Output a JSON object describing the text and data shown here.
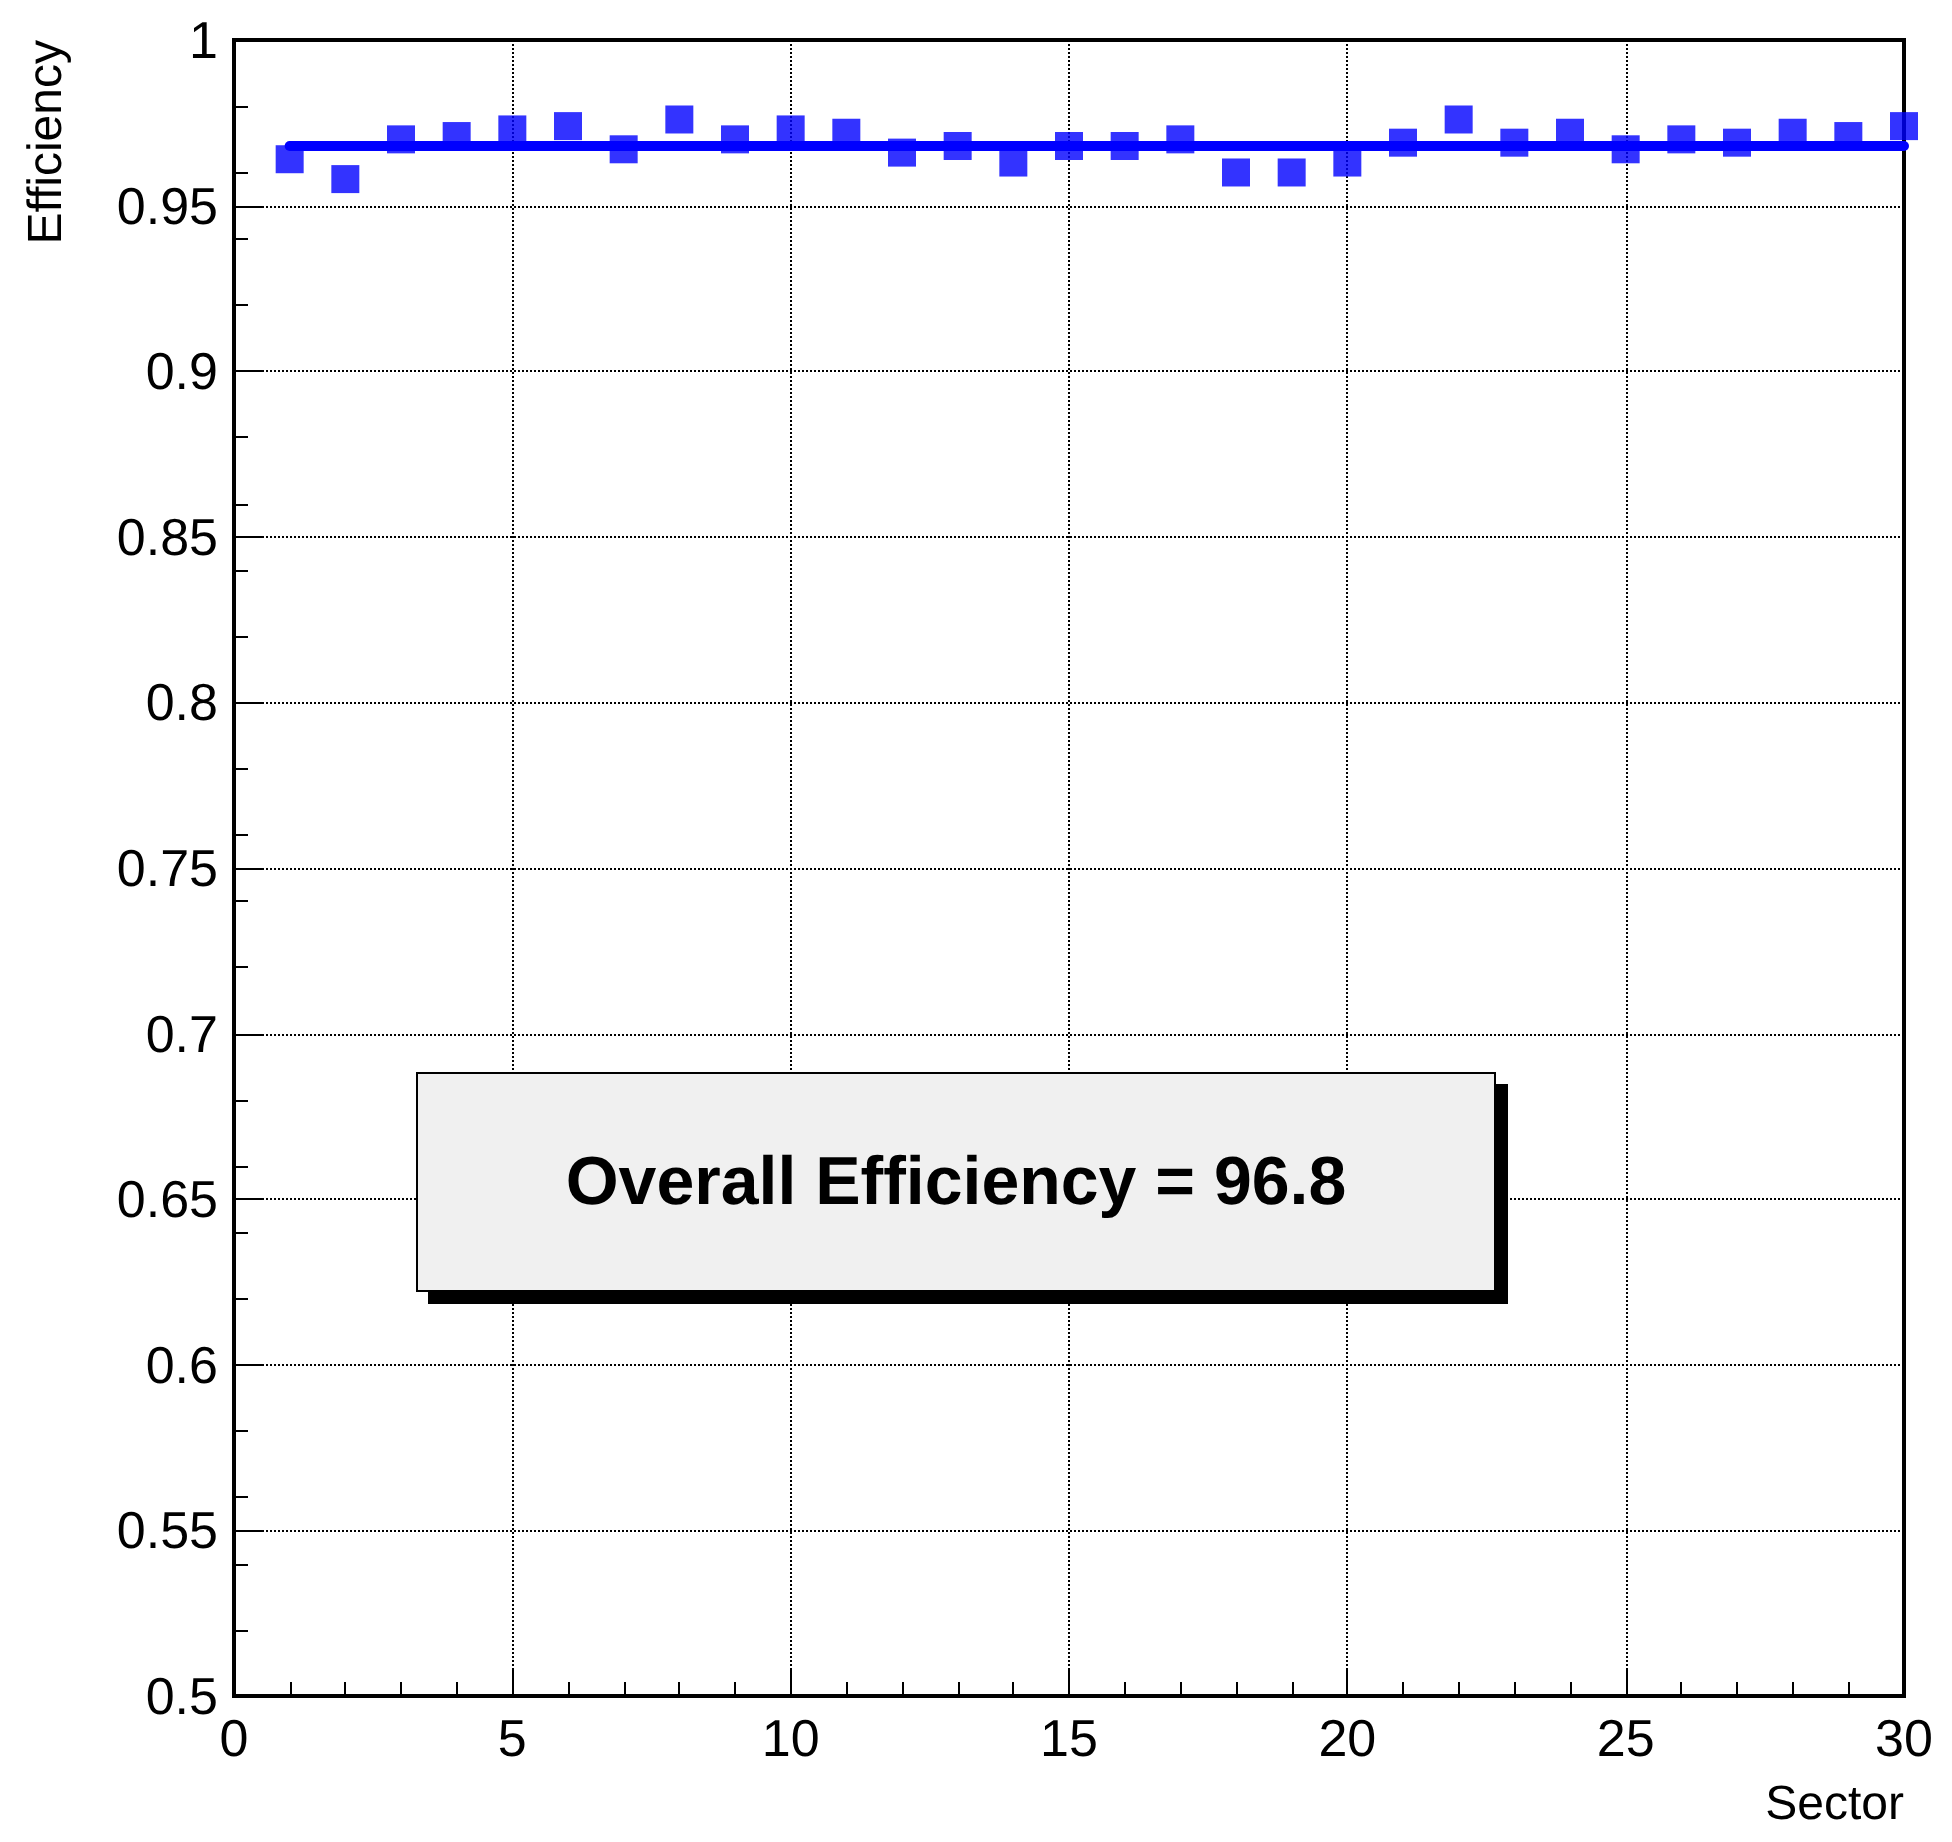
{
  "chart_data": {
    "type": "scatter",
    "xlabel": "Sector",
    "ylabel": "Efficiency",
    "xlim": [
      0,
      30
    ],
    "xticks": [
      0,
      5,
      10,
      15,
      20,
      25,
      30
    ],
    "ylim": [
      0.5,
      1
    ],
    "yticks": [
      0.5,
      0.55,
      0.6,
      0.65,
      0.7,
      0.75,
      0.8,
      0.85,
      0.9,
      0.95,
      1
    ],
    "grid": true,
    "marker": "square",
    "series": [
      {
        "type": "scatter",
        "color": "#0000ff",
        "x": [
          1,
          2,
          3,
          4,
          5,
          6,
          7,
          8,
          9,
          10,
          11,
          12,
          13,
          14,
          15,
          16,
          17,
          18,
          19,
          20,
          21,
          22,
          23,
          24,
          25,
          26,
          27,
          28,
          29,
          30
        ],
        "values": [
          0.964,
          0.958,
          0.97,
          0.971,
          0.973,
          0.974,
          0.967,
          0.976,
          0.97,
          0.973,
          0.972,
          0.966,
          0.968,
          0.963,
          0.968,
          0.968,
          0.97,
          0.96,
          0.96,
          0.963,
          0.969,
          0.976,
          0.969,
          0.972,
          0.967,
          0.97,
          0.969,
          0.972,
          0.971,
          0.974
        ]
      },
      {
        "type": "line",
        "color": "#0000ff",
        "line_style": "solid",
        "marker": "none",
        "x": [
          1,
          30
        ],
        "values": [
          0.968,
          0.968
        ]
      }
    ],
    "annotations": [
      "Overall Efficiency = 96.8"
    ]
  }
}
